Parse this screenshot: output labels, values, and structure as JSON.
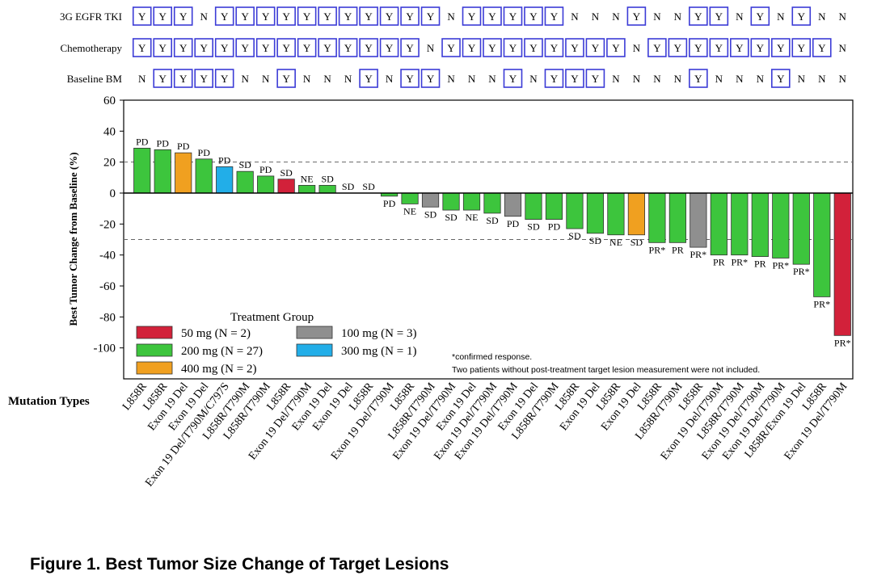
{
  "chart_data": {
    "type": "bar",
    "title": "Figure 1. Best Tumor Size Change of Target Lesions",
    "ylabel": "Best Tumor Change from Baseline (%)",
    "xlabel": "Mutation Types",
    "ylim": [
      -120,
      60
    ],
    "yticks": [
      60,
      40,
      20,
      0,
      -20,
      -40,
      -60,
      -80,
      -100
    ],
    "reference_lines": [
      20,
      -30
    ],
    "groups": [
      {
        "key": "50",
        "label": "50 mg (N = 2)",
        "color": "#d2213a"
      },
      {
        "key": "200",
        "label": "200 mg (N = 27)",
        "color": "#3dc53d"
      },
      {
        "key": "400",
        "label": "400 mg (N = 2)",
        "color": "#f0a020"
      },
      {
        "key": "100",
        "label": "100 mg (N = 3)",
        "color": "#8f8f8f"
      },
      {
        "key": "300",
        "label": "300 mg (N = 1)",
        "color": "#22aee8"
      }
    ],
    "legend_title": "Treatment Group",
    "footnotes": [
      "*confirmed response.",
      "Two patients without post-treatment target lesion measurement were not included."
    ],
    "track_labels": [
      "3G EGFR TKI",
      "Chemotherapy",
      "Baseline BM"
    ],
    "patients": [
      {
        "mutation": "L858R",
        "value": 29,
        "response": "PD",
        "group": "200",
        "tki": "Y",
        "chemo": "Y",
        "bm": "N"
      },
      {
        "mutation": "L858R",
        "value": 28,
        "response": "PD",
        "group": "200",
        "tki": "Y",
        "chemo": "Y",
        "bm": "Y"
      },
      {
        "mutation": "Exon 19 Del",
        "value": 26,
        "response": "PD",
        "group": "400",
        "tki": "Y",
        "chemo": "Y",
        "bm": "Y"
      },
      {
        "mutation": "Exon 19 Del",
        "value": 22,
        "response": "PD",
        "group": "200",
        "tki": "N",
        "chemo": "Y",
        "bm": "Y"
      },
      {
        "mutation": "Exon 19 Del/T790M/C797S",
        "value": 17,
        "response": "PD",
        "group": "300",
        "tki": "Y",
        "chemo": "Y",
        "bm": "Y"
      },
      {
        "mutation": "L858R/T790M",
        "value": 14,
        "response": "SD",
        "group": "200",
        "tki": "Y",
        "chemo": "Y",
        "bm": "N"
      },
      {
        "mutation": "L858R/T790M",
        "value": 11,
        "response": "PD",
        "group": "200",
        "tki": "Y",
        "chemo": "Y",
        "bm": "N"
      },
      {
        "mutation": "L858R",
        "value": 9,
        "response": "SD",
        "group": "50",
        "tki": "Y",
        "chemo": "Y",
        "bm": "Y"
      },
      {
        "mutation": "Exon 19 Del/T790M",
        "value": 5,
        "response": "NE",
        "group": "200",
        "tki": "Y",
        "chemo": "Y",
        "bm": "N"
      },
      {
        "mutation": "Exon 19 Del",
        "value": 5,
        "response": "SD",
        "group": "200",
        "tki": "Y",
        "chemo": "Y",
        "bm": "N"
      },
      {
        "mutation": "Exon 19 Del",
        "value": 0,
        "response": "SD",
        "group": "200",
        "tki": "Y",
        "chemo": "Y",
        "bm": "N"
      },
      {
        "mutation": "L858R",
        "value": 0,
        "response": "SD",
        "group": "200",
        "tki": "Y",
        "chemo": "Y",
        "bm": "Y"
      },
      {
        "mutation": "Exon 19 Del/T790M",
        "value": -2,
        "response": "PD",
        "group": "200",
        "tki": "Y",
        "chemo": "Y",
        "bm": "N"
      },
      {
        "mutation": "L858R",
        "value": -7,
        "response": "NE",
        "group": "200",
        "tki": "Y",
        "chemo": "Y",
        "bm": "Y"
      },
      {
        "mutation": "L858R/T790M",
        "value": -9,
        "response": "SD",
        "group": "100",
        "tki": "Y",
        "chemo": "N",
        "bm": "Y"
      },
      {
        "mutation": "Exon 19 Del/T790M",
        "value": -11,
        "response": "SD",
        "group": "200",
        "tki": "N",
        "chemo": "Y",
        "bm": "N"
      },
      {
        "mutation": "Exon 19 Del",
        "value": -11,
        "response": "NE",
        "group": "200",
        "tki": "Y",
        "chemo": "Y",
        "bm": "N"
      },
      {
        "mutation": "Exon 19 Del/T790M",
        "value": -13,
        "response": "SD",
        "group": "200",
        "tki": "Y",
        "chemo": "Y",
        "bm": "N"
      },
      {
        "mutation": "Exon 19 Del/T790M",
        "value": -15,
        "response": "PD",
        "group": "100",
        "tki": "Y",
        "chemo": "Y",
        "bm": "Y"
      },
      {
        "mutation": "Exon 19 Del",
        "value": -17,
        "response": "SD",
        "group": "200",
        "tki": "Y",
        "chemo": "Y",
        "bm": "N"
      },
      {
        "mutation": "L858R/T790M",
        "value": -17,
        "response": "PD",
        "group": "200",
        "tki": "Y",
        "chemo": "Y",
        "bm": "Y"
      },
      {
        "mutation": "L858R",
        "value": -23,
        "response": "SD",
        "group": "200",
        "tki": "N",
        "chemo": "Y",
        "bm": "Y"
      },
      {
        "mutation": "Exon 19 Del",
        "value": -26,
        "response": "SD",
        "group": "200",
        "tki": "N",
        "chemo": "Y",
        "bm": "Y"
      },
      {
        "mutation": "L858R",
        "value": -27,
        "response": "NE",
        "group": "200",
        "tki": "N",
        "chemo": "Y",
        "bm": "N"
      },
      {
        "mutation": "Exon 19 Del",
        "value": -27,
        "response": "SD",
        "group": "400",
        "tki": "Y",
        "chemo": "N",
        "bm": "N"
      },
      {
        "mutation": "L858R",
        "value": -32,
        "response": "PR*",
        "group": "200",
        "tki": "N",
        "chemo": "Y",
        "bm": "N"
      },
      {
        "mutation": "L858R/T790M",
        "value": -32,
        "response": "PR",
        "group": "200",
        "tki": "N",
        "chemo": "Y",
        "bm": "N"
      },
      {
        "mutation": "L858R",
        "value": -35,
        "response": "PR*",
        "group": "100",
        "tki": "Y",
        "chemo": "Y",
        "bm": "Y"
      },
      {
        "mutation": "Exon 19 Del/T790M",
        "value": -40,
        "response": "PR",
        "group": "200",
        "tki": "Y",
        "chemo": "Y",
        "bm": "N"
      },
      {
        "mutation": "L858R/T790M",
        "value": -40,
        "response": "PR*",
        "group": "200",
        "tki": "N",
        "chemo": "Y",
        "bm": "N"
      },
      {
        "mutation": "Exon 19 Del/T790M",
        "value": -41,
        "response": "PR",
        "group": "200",
        "tki": "Y",
        "chemo": "Y",
        "bm": "N"
      },
      {
        "mutation": "Exon 19 Del/T790M",
        "value": -42,
        "response": "PR*",
        "group": "200",
        "tki": "N",
        "chemo": "Y",
        "bm": "Y"
      },
      {
        "mutation": "L858R/Exon 19 Del",
        "value": -46,
        "response": "PR*",
        "group": "200",
        "tki": "Y",
        "chemo": "Y",
        "bm": "N"
      },
      {
        "mutation": "L858R",
        "value": -67,
        "response": "PR*",
        "group": "200",
        "tki": "N",
        "chemo": "Y",
        "bm": "N"
      },
      {
        "mutation": "Exon 19 Del/T790M",
        "value": -92,
        "response": "PR*",
        "group": "50",
        "tki": "N",
        "chemo": "N",
        "bm": "N"
      }
    ]
  }
}
